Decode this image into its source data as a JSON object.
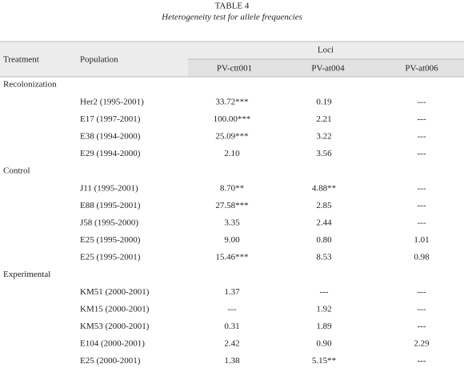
{
  "header": {
    "title": "TABLE 4",
    "subtitle": "Heterogeneity test for allele frequencies"
  },
  "table": {
    "columns": {
      "treatment": "Treatment",
      "population": "Population",
      "group": "Loci",
      "loci": [
        "PV-ctt001",
        "PV-at004",
        "PV-at006"
      ]
    },
    "groups": [
      {
        "treatment": "Recolonization",
        "rows": [
          [
            "Her2 (1995-2001)",
            "33.72***",
            "0.19",
            "---"
          ],
          [
            "E17 (1997-2001)",
            "100.00***",
            "2.21",
            "---"
          ],
          [
            "E38 (1994-2000)",
            "25.09***",
            "3.22",
            "---"
          ],
          [
            "E29 (1994-2000)",
            "2.10",
            "3.56",
            "---"
          ]
        ]
      },
      {
        "treatment": "Control",
        "rows": [
          [
            "J11 (1995-2001)",
            "8.70**",
            "4.88**",
            "---"
          ],
          [
            "E88 (1995-2001)",
            "27.58***",
            "2.85",
            "---"
          ],
          [
            "J58 (1995-2000)",
            "3.35",
            "2.44",
            "---"
          ],
          [
            "E25 (1995-2000)",
            "9.00",
            "0.80",
            "1.01"
          ],
          [
            "E25 (1995-2001)",
            "15.46***",
            "8.53",
            "0.98"
          ]
        ]
      },
      {
        "treatment": "Experimental",
        "rows": [
          [
            "KM51 (2000-2001)",
            "1.37",
            "---",
            "---"
          ],
          [
            "KM15 (2000-2001)",
            "---",
            "1.92",
            "---"
          ],
          [
            "KM53 (2000-2001)",
            "0.31",
            "1.89",
            "---"
          ],
          [
            "E104 (2000-2001)",
            "2.42",
            "0.90",
            "2.29"
          ],
          [
            "E25 (2000-2001)",
            "1.38",
            "5.15**",
            "---"
          ]
        ]
      }
    ]
  }
}
